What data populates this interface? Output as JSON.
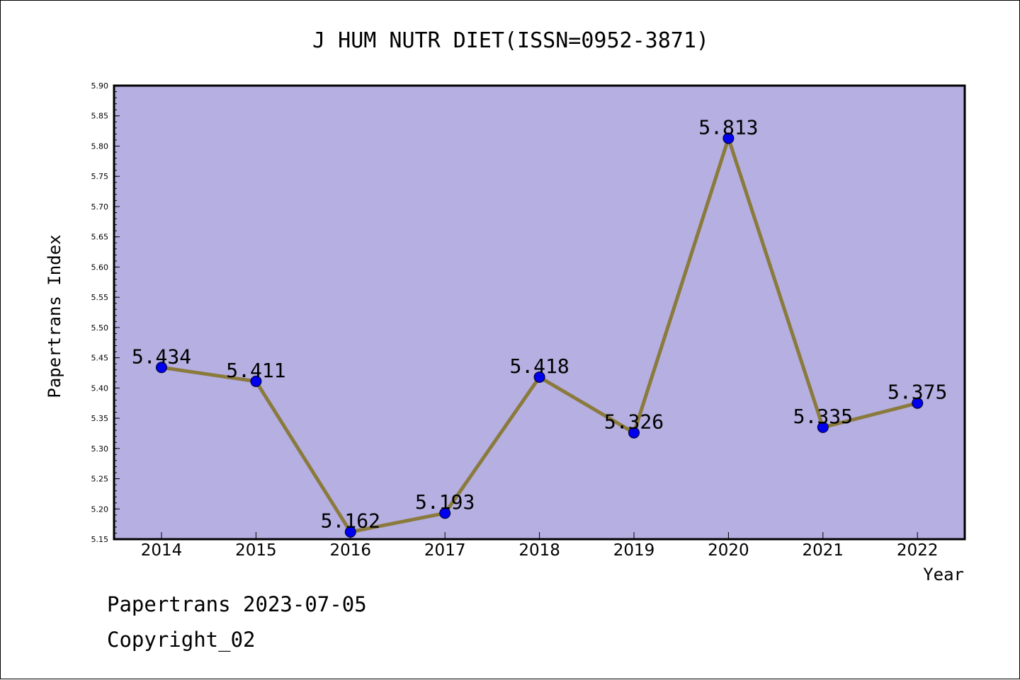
{
  "chart_data": {
    "type": "line",
    "title": "J HUM NUTR DIET(ISSN=0952-3871)",
    "xlabel": "Year",
    "ylabel": "Papertrans Index",
    "x": [
      "2014",
      "2015",
      "2016",
      "2017",
      "2018",
      "2019",
      "2020",
      "2021",
      "2022"
    ],
    "series": [
      {
        "values": [
          5.434,
          5.411,
          5.162,
          5.193,
          5.418,
          5.326,
          5.813,
          5.335,
          5.375
        ],
        "labels": [
          "5.434",
          "5.411",
          "5.162",
          "5.193",
          "5.418",
          "5.326",
          "5.813",
          "5.335",
          "5.375"
        ]
      }
    ],
    "ylim": [
      5.15,
      5.9
    ],
    "yticks": [
      "5.15",
      "5.20",
      "5.25",
      "5.30",
      "5.35",
      "5.40",
      "5.45",
      "5.50",
      "5.55",
      "5.60",
      "5.65",
      "5.70",
      "5.75",
      "5.80",
      "5.85",
      "5.90"
    ],
    "grid": false,
    "colors": {
      "plot_background": "#b5afe2",
      "line": "#8a7a3c",
      "marker": "#0000ee"
    }
  },
  "footer": {
    "date_line": "Papertrans 2023-07-05",
    "copyright": "Copyright_02"
  }
}
